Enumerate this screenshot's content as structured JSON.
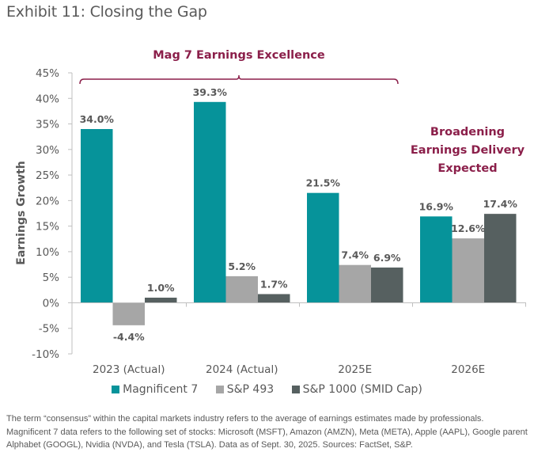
{
  "page": {
    "title": "Exhibit 11: Closing the Gap",
    "footnote": "The term “consensus” within the capital markets industry refers to the average of earnings estimates made by professionals. Magnificent 7 data refers to the following set of stocks: Microsoft (MSFT), Amazon (AMZN), Meta (META), Apple (AAPL), Google parent Alphabet (GOOGL), Nvidia (NVDA), and Tesla (TSLA). Data as of Sept. 30, 2025. Sources: FactSet, S&P."
  },
  "colors": {
    "magnificent7": "#06939a",
    "sp493": "#a6a6a6",
    "sp1000": "#566060",
    "annotation": "#8b1f4a",
    "axis": "#bfbfbf",
    "text": "#595959"
  },
  "chart_data": {
    "type": "bar",
    "title": "Exhibit 11: Closing the Gap",
    "xlabel": "",
    "ylabel": "Earnings Growth",
    "ylim": [
      -10,
      45
    ],
    "yticks": [
      45,
      40,
      35,
      30,
      25,
      20,
      15,
      10,
      5,
      0,
      -5,
      -10
    ],
    "ytick_labels": [
      "45%",
      "40%",
      "35%",
      "30%",
      "25%",
      "20%",
      "15%",
      "10%",
      "5%",
      "0%",
      "-5%",
      "-10%"
    ],
    "grid": false,
    "legend_position": "bottom",
    "categories": [
      "2023 (Actual)",
      "2024 (Actual)",
      "2025E",
      "2026E"
    ],
    "series": [
      {
        "name": "Magnificent 7",
        "values": [
          34.0,
          39.3,
          21.5,
          16.9
        ],
        "labels": [
          "34.0%",
          "39.3%",
          "21.5%",
          "16.9%"
        ]
      },
      {
        "name": "S&P 493",
        "values": [
          -4.4,
          5.2,
          7.4,
          12.6
        ],
        "labels": [
          "-4.4%",
          "5.2%",
          "7.4%",
          "12.6%"
        ]
      },
      {
        "name": "S&P 1000 (SMID Cap)",
        "values": [
          1.0,
          1.7,
          6.9,
          17.4
        ],
        "labels": [
          "1.0%",
          "1.7%",
          "6.9%",
          "17.4%"
        ]
      }
    ],
    "annotations": [
      {
        "text": "Mag 7 Earnings Excellence",
        "type": "bracket",
        "spans_categories": [
          "2023 (Actual)",
          "2025E"
        ]
      },
      {
        "text_lines": [
          "Broadening",
          "Earnings Delivery",
          "Expected"
        ],
        "type": "text",
        "near_category": "2026E"
      }
    ]
  }
}
